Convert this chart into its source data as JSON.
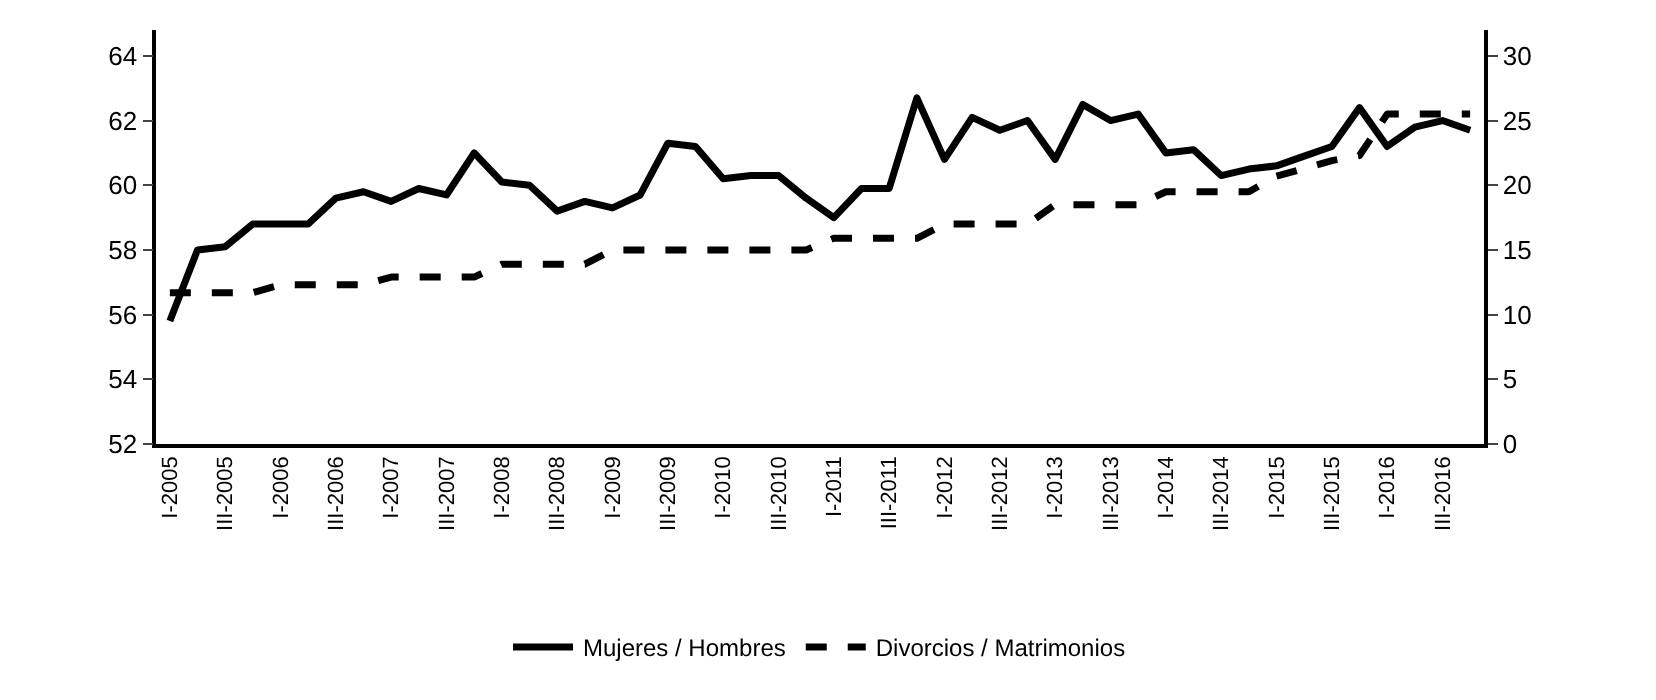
{
  "chart_data": {
    "type": "line",
    "categories": [
      "I-2005",
      null,
      "III-2005",
      null,
      "I-2006",
      null,
      "III-2006",
      null,
      "I-2007",
      null,
      "III-2007",
      null,
      "I-2008",
      null,
      "III-2008",
      null,
      "I-2009",
      null,
      "III-2009",
      null,
      "I-2010",
      null,
      "III-2010",
      null,
      "I-2011",
      null,
      "III-2011",
      null,
      "I-2012",
      null,
      "III-2012",
      null,
      "I-2013",
      null,
      "III-2013",
      null,
      "I-2014",
      null,
      "III-2014",
      null,
      "I-2015",
      null,
      "III-2015",
      null,
      "I-2016",
      null,
      "III-2016",
      null
    ],
    "series": [
      {
        "name": "Mujeres / Hombres",
        "color": "#000000",
        "line_style": "solid",
        "values": [
          55.8,
          58.0,
          58.1,
          58.8,
          58.8,
          58.8,
          59.6,
          59.8,
          59.5,
          59.9,
          59.7,
          61.0,
          60.1,
          60.0,
          59.2,
          59.5,
          59.3,
          59.7,
          61.3,
          61.2,
          60.2,
          60.3,
          60.3,
          59.6,
          59.0,
          59.9,
          59.9,
          62.7,
          60.8,
          62.1,
          61.7,
          62.0,
          60.8,
          62.5,
          62.0,
          62.2,
          61.0,
          61.1,
          60.3,
          60.5,
          60.6,
          60.9,
          61.2,
          62.4,
          61.2,
          61.8,
          62.0,
          61.7
        ]
      },
      {
        "name": "Divorcios / Matrimonios",
        "color": "#000000",
        "line_style": "dashed",
        "axis": "y2",
        "values": [
          11.7,
          11.7,
          11.7,
          11.7,
          12.3,
          12.3,
          12.3,
          12.3,
          12.9,
          12.9,
          12.9,
          12.9,
          13.9,
          13.9,
          13.9,
          13.9,
          15.0,
          15.0,
          15.0,
          15.0,
          15.0,
          15.0,
          15.0,
          15.0,
          15.9,
          15.9,
          15.9,
          15.9,
          17.0,
          17.0,
          17.0,
          17.0,
          18.5,
          18.5,
          18.5,
          18.5,
          19.5,
          19.5,
          19.5,
          19.5,
          20.7,
          21.3,
          21.9,
          22.3,
          25.5,
          25.5,
          25.5,
          25.5
        ]
      }
    ],
    "ylim": [
      52,
      64.8
    ],
    "yticks": [
      52,
      54,
      56,
      58,
      60,
      62,
      64
    ],
    "y2lim": [
      0,
      32
    ],
    "y2ticks": [
      0,
      5,
      10,
      15,
      20,
      25,
      30
    ],
    "legend": "bottom",
    "marker": "none"
  }
}
